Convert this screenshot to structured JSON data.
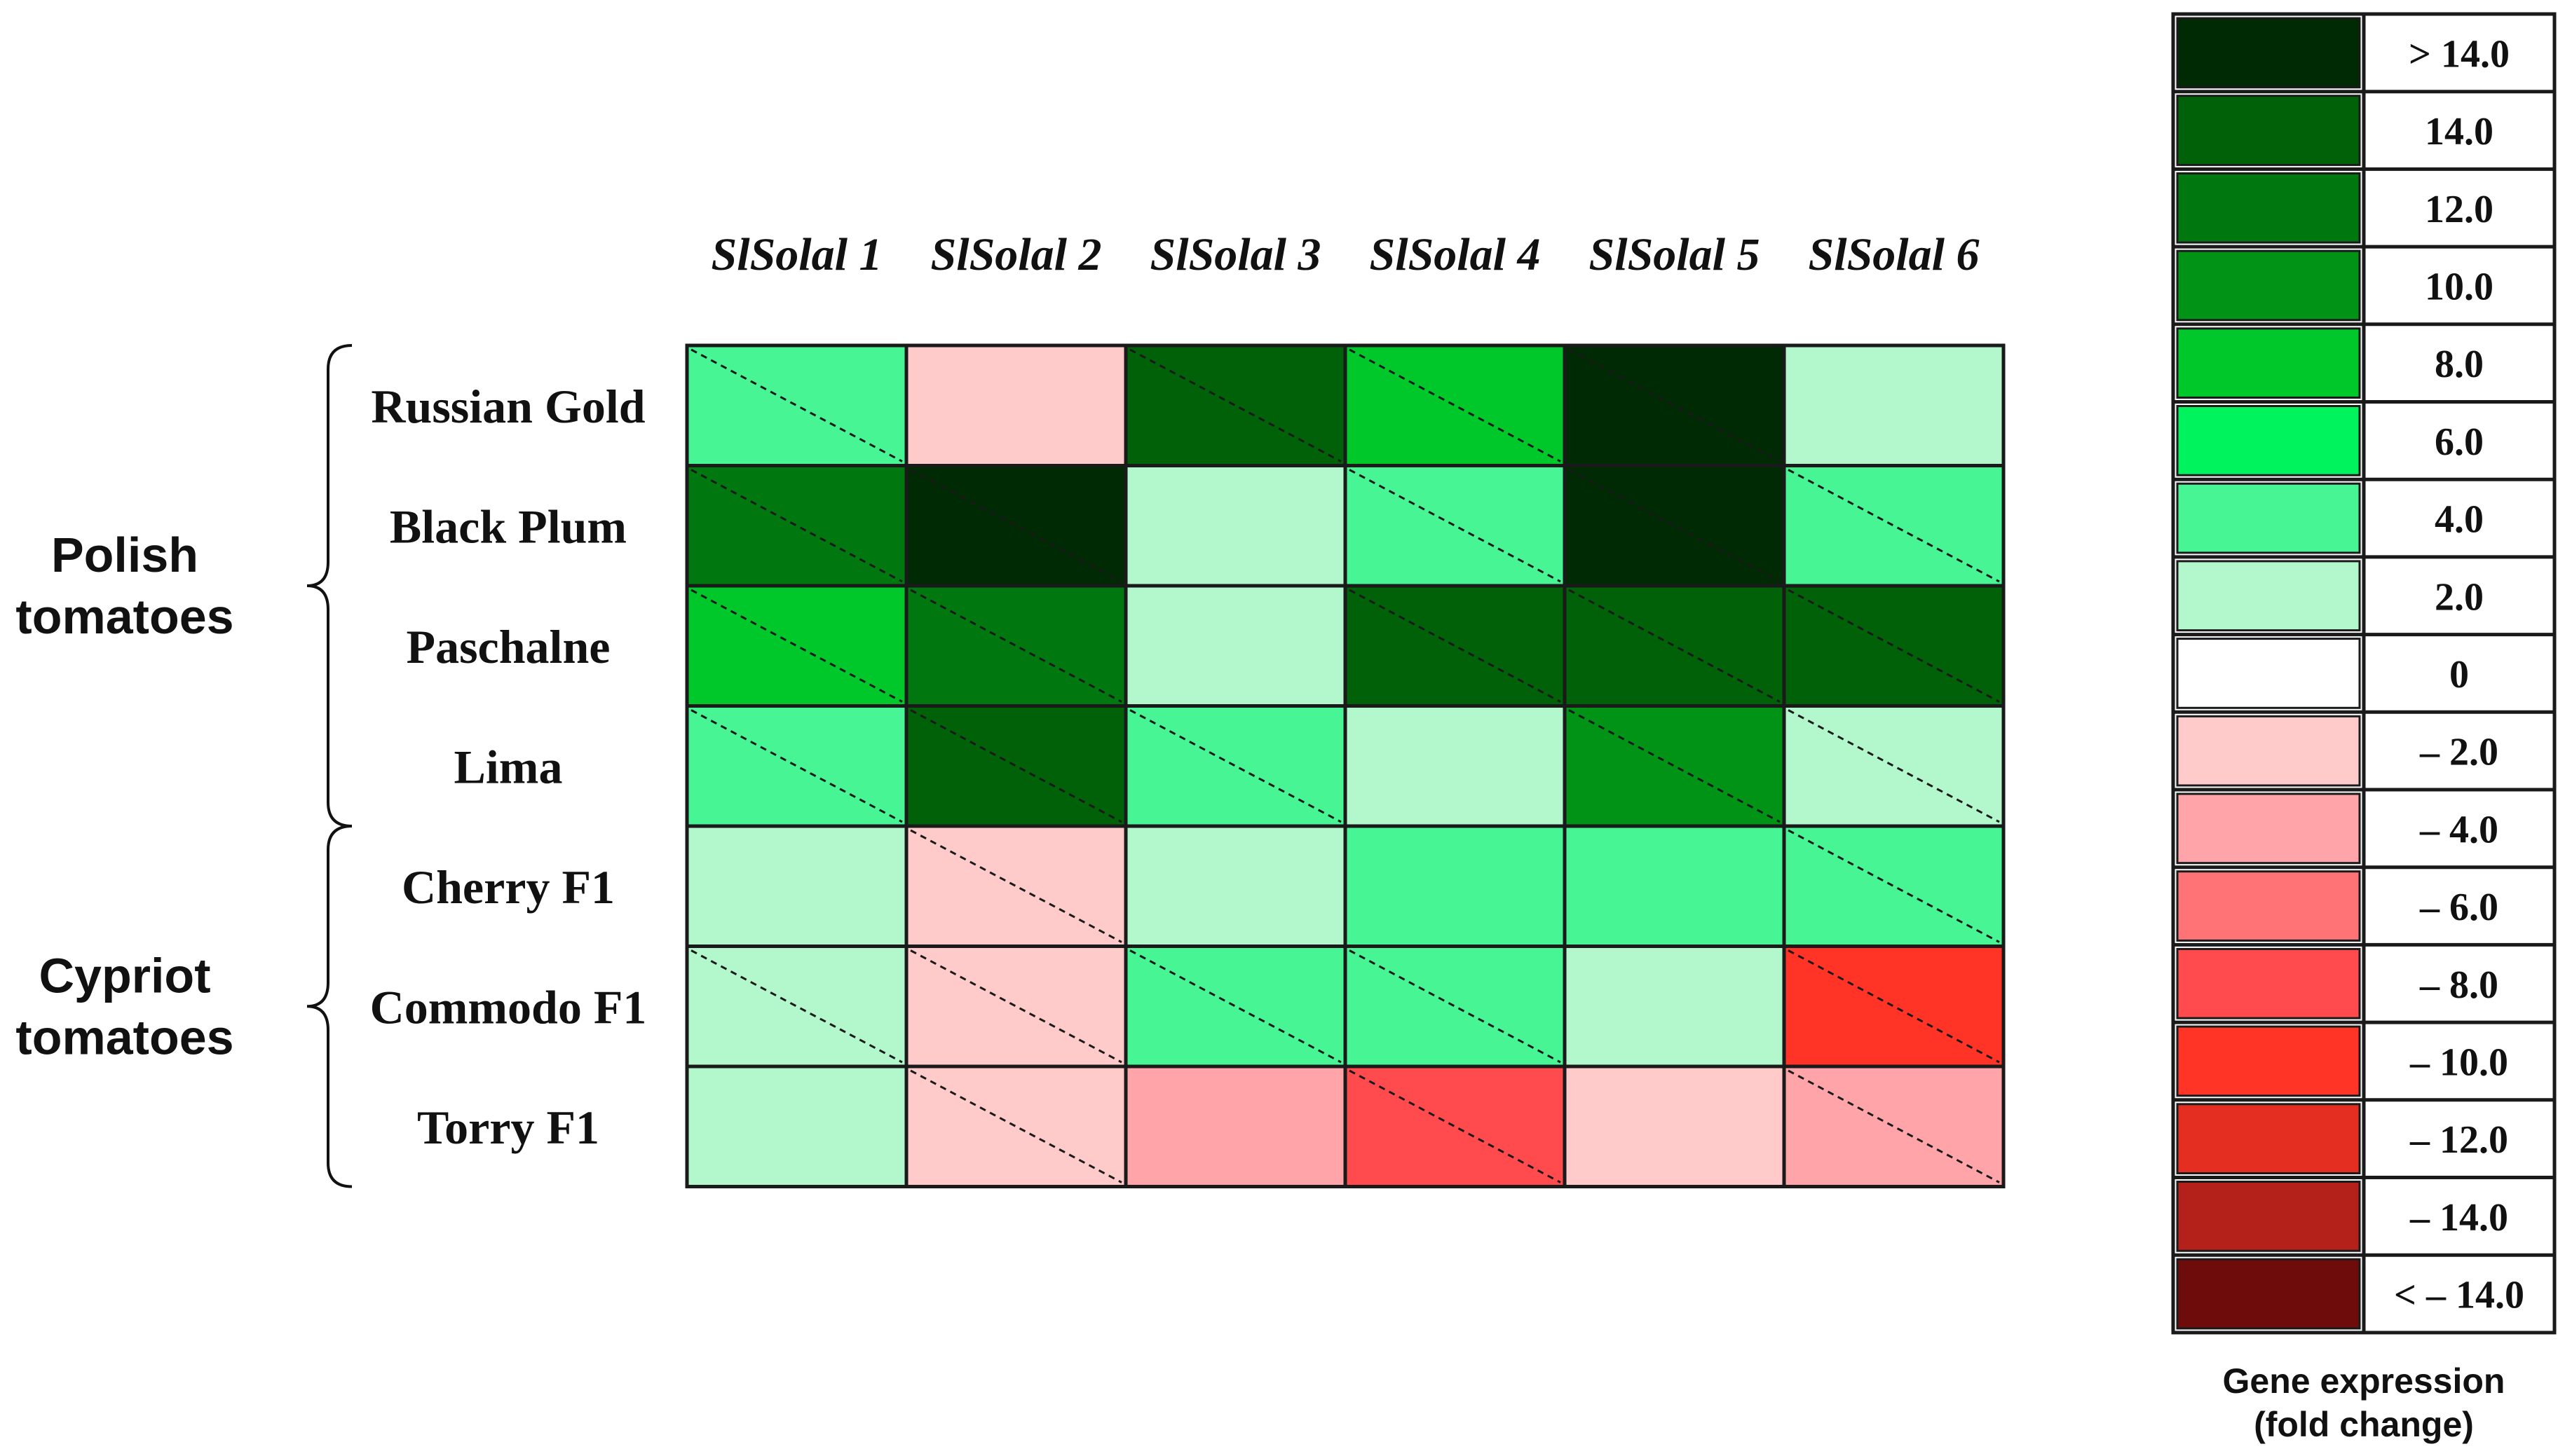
{
  "chart_data": {
    "type": "heatmap",
    "columns": [
      "SlSolal 1",
      "SlSolal 2",
      "SlSolal 3",
      "SlSolal 4",
      "SlSolal 5",
      "SlSolal 6"
    ],
    "groups": [
      {
        "label": "Polish\ntomatoes",
        "rows": [
          "Russian Gold",
          "Black Plum",
          "Paschalne",
          "Lima"
        ]
      },
      {
        "label": "Cypriot\ntomatoes",
        "rows": [
          "Cherry F1",
          "Commodo F1",
          "Torry F1"
        ]
      }
    ],
    "values": [
      [
        4.0,
        -2.0,
        14.0,
        8.0,
        15.0,
        2.0
      ],
      [
        12.0,
        15.0,
        2.0,
        4.0,
        15.0,
        4.0
      ],
      [
        8.0,
        12.0,
        2.0,
        14.0,
        14.0,
        14.0
      ],
      [
        4.0,
        14.0,
        4.0,
        2.0,
        10.0,
        2.0
      ],
      [
        2.0,
        -2.0,
        2.0,
        4.0,
        4.0,
        4.0
      ],
      [
        2.0,
        -2.0,
        4.0,
        4.0,
        2.0,
        -10.0
      ],
      [
        2.0,
        -2.0,
        -4.0,
        -8.0,
        -2.0,
        -4.0
      ]
    ],
    "diagonal_marked": [
      [
        true,
        false,
        true,
        true,
        true,
        false
      ],
      [
        true,
        true,
        false,
        true,
        true,
        true
      ],
      [
        true,
        true,
        false,
        true,
        true,
        true
      ],
      [
        true,
        true,
        true,
        false,
        true,
        true
      ],
      [
        false,
        true,
        false,
        false,
        false,
        true
      ],
      [
        true,
        true,
        true,
        true,
        false,
        true
      ],
      [
        false,
        true,
        false,
        true,
        false,
        true
      ]
    ],
    "legend": {
      "title": "Gene expression\n(fold change)",
      "entries": [
        {
          "label": "> 14.0",
          "value": 15.0,
          "color": "#002a03"
        },
        {
          "label": "14.0",
          "value": 14.0,
          "color": "#006109"
        },
        {
          "label": "12.0",
          "value": 12.0,
          "color": "#00780f"
        },
        {
          "label": "10.0",
          "value": 10.0,
          "color": "#009316"
        },
        {
          "label": "8.0",
          "value": 8.0,
          "color": "#00c82b"
        },
        {
          "label": "6.0",
          "value": 6.0,
          "color": "#00f25d"
        },
        {
          "label": "4.0",
          "value": 4.0,
          "color": "#48f595"
        },
        {
          "label": "2.0",
          "value": 2.0,
          "color": "#b3f7cd"
        },
        {
          "label": "0",
          "value": 0.0,
          "color": "#ffffff"
        },
        {
          "label": "– 2.0",
          "value": -2.0,
          "color": "#ffcaca"
        },
        {
          "label": "– 4.0",
          "value": -4.0,
          "color": "#ffa5aa"
        },
        {
          "label": "– 6.0",
          "value": -6.0,
          "color": "#ff7377"
        },
        {
          "label": "– 8.0",
          "value": -8.0,
          "color": "#ff4a4e"
        },
        {
          "label": "– 10.0",
          "value": -10.0,
          "color": "#ff3326"
        },
        {
          "label": "– 12.0",
          "value": -12.0,
          "color": "#e52e22"
        },
        {
          "label": "– 14.0",
          "value": -14.0,
          "color": "#b3211a"
        },
        {
          "label": "< – 14.0",
          "value": -15.0,
          "color": "#6e0c0b"
        }
      ]
    }
  }
}
